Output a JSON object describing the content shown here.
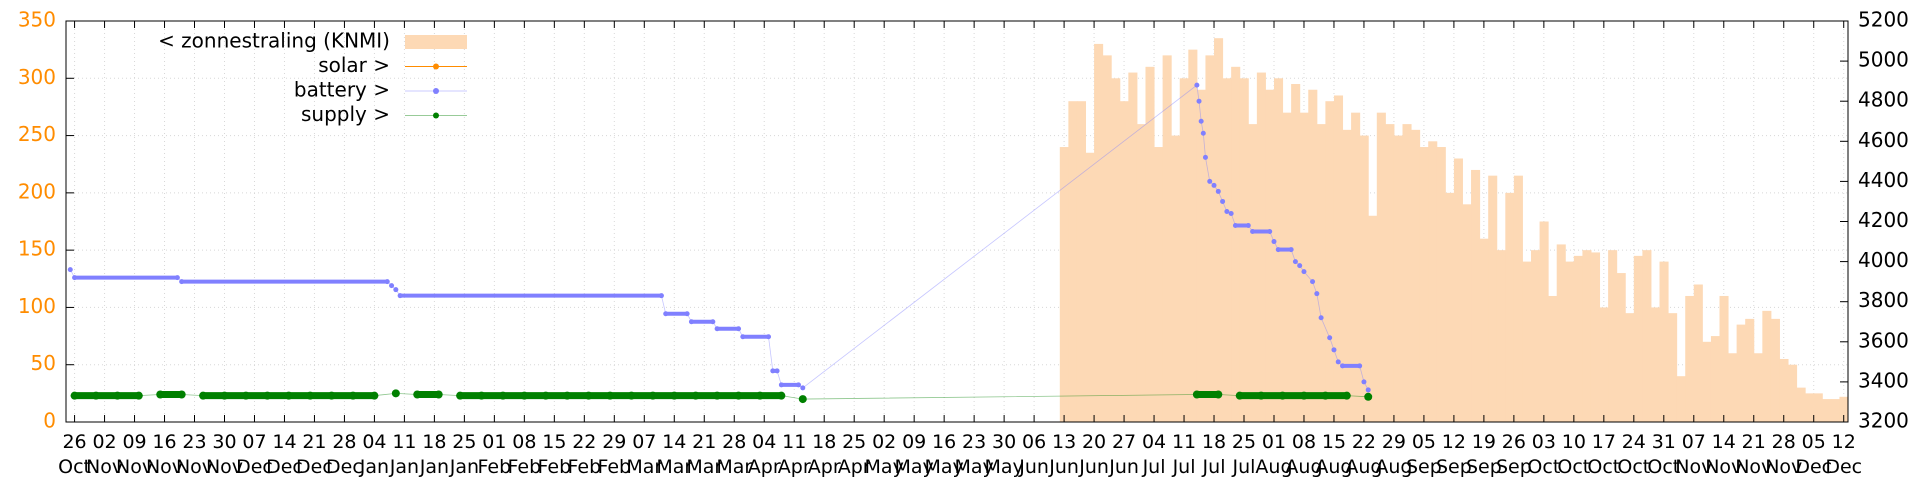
{
  "chart_data": {
    "type": "line",
    "xlim": [
      -2,
      414
    ],
    "ylim": [
      0,
      350
    ],
    "yticks": [
      0,
      50,
      100,
      150,
      200,
      250,
      300,
      350
    ],
    "ytick_color": "#ff8c00",
    "y2lim": [
      3200,
      5200
    ],
    "y2ticks": [
      3200,
      3400,
      3600,
      3800,
      4000,
      4200,
      4400,
      4600,
      4800,
      5000,
      5200
    ],
    "grid": true,
    "legend": "upper left",
    "xticks": [
      {
        "value": 0,
        "label": "26\nOct"
      },
      {
        "value": 7,
        "label": "02\nNov"
      },
      {
        "value": 14,
        "label": "09\nNov"
      },
      {
        "value": 21,
        "label": "16\nNov"
      },
      {
        "value": 28,
        "label": "23\nNov"
      },
      {
        "value": 35,
        "label": "30\nNov"
      },
      {
        "value": 42,
        "label": "07\nDec"
      },
      {
        "value": 49,
        "label": "14\nDec"
      },
      {
        "value": 56,
        "label": "21\nDec"
      },
      {
        "value": 63,
        "label": "28\nDec"
      },
      {
        "value": 70,
        "label": "04\nJan"
      },
      {
        "value": 77,
        "label": "11\nJan"
      },
      {
        "value": 84,
        "label": "18\nJan"
      },
      {
        "value": 91,
        "label": "25\nJan"
      },
      {
        "value": 98,
        "label": "01\nFeb"
      },
      {
        "value": 105,
        "label": "08\nFeb"
      },
      {
        "value": 112,
        "label": "15\nFeb"
      },
      {
        "value": 119,
        "label": "22\nFeb"
      },
      {
        "value": 126,
        "label": "29\nFeb"
      },
      {
        "value": 133,
        "label": "07\nMar"
      },
      {
        "value": 140,
        "label": "14\nMar"
      },
      {
        "value": 147,
        "label": "21\nMar"
      },
      {
        "value": 154,
        "label": "28\nMar"
      },
      {
        "value": 161,
        "label": "04\nApr"
      },
      {
        "value": 168,
        "label": "11\nApr"
      },
      {
        "value": 175,
        "label": "18\nApr"
      },
      {
        "value": 182,
        "label": "25\nApr"
      },
      {
        "value": 189,
        "label": "02\nMay"
      },
      {
        "value": 196,
        "label": "09\nMay"
      },
      {
        "value": 203,
        "label": "16\nMay"
      },
      {
        "value": 210,
        "label": "23\nMay"
      },
      {
        "value": 217,
        "label": "30\nMay"
      },
      {
        "value": 224,
        "label": "06\nJun"
      },
      {
        "value": 231,
        "label": "13\nJun"
      },
      {
        "value": 238,
        "label": "20\nJun"
      },
      {
        "value": 245,
        "label": "27\nJun"
      },
      {
        "value": 252,
        "label": "04\nJul"
      },
      {
        "value": 259,
        "label": "11\nJul"
      },
      {
        "value": 266,
        "label": "18\nJul"
      },
      {
        "value": 273,
        "label": "25\nJul"
      },
      {
        "value": 280,
        "label": "01\nAug"
      },
      {
        "value": 287,
        "label": "08\nAug"
      },
      {
        "value": 294,
        "label": "15\nAug"
      },
      {
        "value": 301,
        "label": "22\nAug"
      },
      {
        "value": 308,
        "label": "29\nAug"
      },
      {
        "value": 315,
        "label": "05\nSep"
      },
      {
        "value": 322,
        "label": "12\nSep"
      },
      {
        "value": 329,
        "label": "19\nSep"
      },
      {
        "value": 336,
        "label": "26\nSep"
      },
      {
        "value": 343,
        "label": "03\nOct"
      },
      {
        "value": 350,
        "label": "10\nOct"
      },
      {
        "value": 357,
        "label": "17\nOct"
      },
      {
        "value": 364,
        "label": "24\nOct"
      },
      {
        "value": 371,
        "label": "31\nOct"
      },
      {
        "value": 378,
        "label": "07\nNov"
      },
      {
        "value": 385,
        "label": "14\nNov"
      },
      {
        "value": 392,
        "label": "21\nNov"
      },
      {
        "value": 399,
        "label": "28\nNov"
      },
      {
        "value": 406,
        "label": "05\nDec"
      },
      {
        "value": 413,
        "label": "12\nDec"
      }
    ],
    "series": [
      {
        "name": "< zonnestraling (KNMI)",
        "type": "area",
        "color": "#fdd9b5",
        "axis": "y",
        "x": [
          230,
          232,
          234,
          236,
          238,
          240,
          242,
          244,
          246,
          248,
          250,
          252,
          254,
          256,
          258,
          260,
          262,
          264,
          266,
          268,
          270,
          272,
          274,
          276,
          278,
          280,
          282,
          284,
          286,
          288,
          290,
          292,
          294,
          296,
          298,
          300,
          302,
          304,
          306,
          308,
          310,
          312,
          314,
          316,
          318,
          320,
          322,
          324,
          326,
          328,
          330,
          332,
          334,
          336,
          338,
          340,
          342,
          344,
          346,
          348,
          350,
          352,
          354,
          356,
          358,
          360,
          362,
          364,
          366,
          368,
          370,
          372,
          374,
          376,
          378,
          380,
          382,
          384,
          386,
          388,
          390,
          392,
          394,
          396,
          398,
          400,
          402,
          404,
          406,
          408,
          410,
          412
        ],
        "values": [
          240,
          280,
          280,
          235,
          330,
          320,
          300,
          280,
          305,
          260,
          310,
          240,
          320,
          250,
          300,
          325,
          290,
          320,
          335,
          300,
          310,
          300,
          260,
          305,
          290,
          300,
          270,
          295,
          270,
          290,
          260,
          280,
          285,
          255,
          270,
          250,
          180,
          270,
          260,
          250,
          260,
          255,
          240,
          245,
          240,
          200,
          230,
          190,
          220,
          160,
          215,
          150,
          200,
          215,
          140,
          150,
          175,
          110,
          155,
          140,
          145,
          150,
          148,
          100,
          150,
          130,
          95,
          145,
          150,
          100,
          140,
          95,
          40,
          110,
          120,
          70,
          75,
          110,
          60,
          85,
          90,
          60,
          97,
          90,
          55,
          50,
          30,
          25,
          25,
          20,
          20,
          22
        ]
      },
      {
        "name": "solar >",
        "type": "line",
        "color": "#ff8c00",
        "axis": "y2"
      },
      {
        "name": "battery >",
        "type": "points",
        "color": "#8080ff",
        "axis": "y2",
        "x": [
          -1,
          0,
          24,
          25,
          73,
          74,
          75,
          76,
          137,
          138,
          143,
          144,
          149,
          150,
          155,
          156,
          162,
          163,
          164,
          165,
          169,
          170,
          262,
          262.5,
          263,
          263.5,
          264,
          265,
          266,
          267,
          268,
          269,
          270,
          271,
          274,
          275,
          279,
          280,
          281,
          284,
          285,
          286,
          287,
          289,
          290,
          291,
          293,
          294,
          295,
          296,
          300,
          301,
          302
        ],
        "values": [
          3960,
          3920,
          3920,
          3900,
          3900,
          3880,
          3860,
          3830,
          3830,
          3740,
          3740,
          3700,
          3700,
          3665,
          3665,
          3625,
          3625,
          3455,
          3455,
          3385,
          3385,
          3370,
          4880,
          4800,
          4700,
          4640,
          4520,
          4400,
          4380,
          4350,
          4300,
          4250,
          4240,
          4180,
          4180,
          4150,
          4150,
          4100,
          4060,
          4060,
          4000,
          3980,
          3950,
          3900,
          3840,
          3720,
          3620,
          3560,
          3500,
          3480,
          3480,
          3400,
          3360
        ]
      },
      {
        "name": "supply >",
        "type": "points",
        "color": "#008000",
        "axis": "y",
        "x": [
          0,
          5,
          10,
          15,
          20,
          25,
          30,
          35,
          40,
          45,
          50,
          55,
          60,
          65,
          70,
          75,
          80,
          85,
          90,
          95,
          100,
          105,
          110,
          115,
          120,
          125,
          130,
          135,
          140,
          145,
          150,
          155,
          160,
          165,
          170,
          262,
          267,
          272,
          277,
          282,
          287,
          292,
          297,
          302
        ],
        "values": [
          23,
          23,
          23,
          23,
          24,
          24,
          23,
          23,
          23,
          23,
          23,
          23,
          23,
          23,
          23,
          25,
          24,
          24,
          23,
          23,
          23,
          23,
          23,
          23,
          23,
          23,
          23,
          23,
          23,
          23,
          23,
          23,
          23,
          23,
          20,
          24,
          24,
          23,
          23,
          23,
          23,
          23,
          23,
          22
        ]
      }
    ]
  }
}
